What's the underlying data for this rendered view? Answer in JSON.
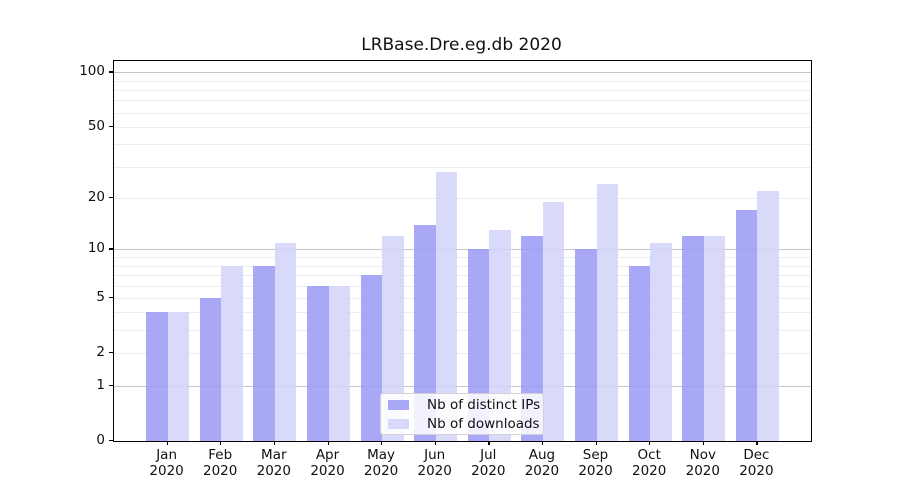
{
  "title": "LRBase.Dre.eg.db 2020",
  "chart_data": {
    "type": "bar",
    "title": "LRBase.Dre.eg.db 2020",
    "categories": [
      "Jan",
      "Feb",
      "Mar",
      "Apr",
      "May",
      "Jun",
      "Jul",
      "Aug",
      "Sep",
      "Oct",
      "Nov",
      "Dec"
    ],
    "year_label": "2020",
    "series": [
      {
        "name": "Nb of distinct IPs",
        "color": "rgba(153,153,244,0.85)",
        "color_hex_on_white": "#a8a8f6",
        "values": [
          4,
          5,
          8,
          6,
          7,
          14,
          10,
          12,
          10,
          8,
          12,
          17
        ]
      },
      {
        "name": "Nb of downloads",
        "color": "rgba(210,210,249,0.85)",
        "color_hex_on_white": "#d9d9fa",
        "values": [
          4,
          8,
          11,
          6,
          12,
          28,
          13,
          19,
          24,
          11,
          12,
          22
        ]
      }
    ],
    "yscale": "log1p",
    "ylim": [
      0,
      115.3
    ],
    "y_ticks": [
      0,
      1,
      2,
      5,
      10,
      20,
      50,
      100
    ],
    "y_major_gridlines": [
      1,
      10,
      100
    ],
    "y_minor_gridlines": [
      2,
      3,
      4,
      5,
      6,
      7,
      8,
      9,
      20,
      30,
      40,
      50,
      60,
      70,
      80,
      90
    ],
    "xlabel": "",
    "ylabel": "",
    "grid": "on",
    "legend_position": "lower center"
  },
  "colors": {
    "major_grid": "#c6c6c6",
    "minor_grid": "#ededed",
    "spine": "#000000",
    "background": "#ffffff"
  }
}
